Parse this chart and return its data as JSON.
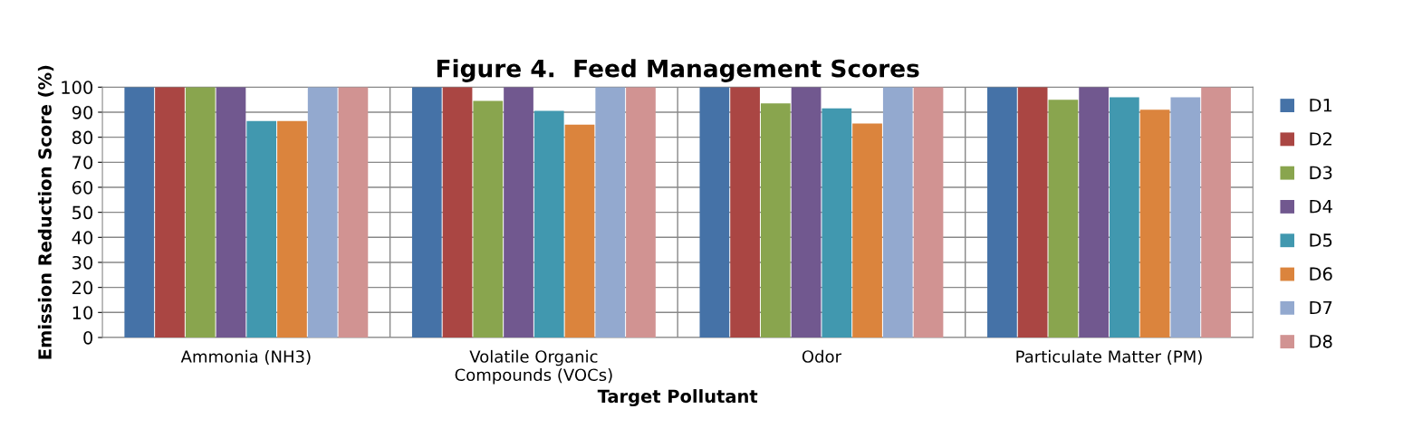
{
  "chart_data": {
    "type": "bar",
    "title": "Figure 4.  Feed Management Scores",
    "xlabel": "Target Pollutant",
    "ylabel": "Emission Reduction Score (%)",
    "categories": [
      "Ammonia (NH3)",
      "Volatile Organic\nCompounds (VOCs)",
      "Odor",
      "Particulate Matter (PM)"
    ],
    "series": [
      {
        "name": "D1",
        "color": "#4572a7",
        "values": [
          100,
          100,
          100,
          100
        ]
      },
      {
        "name": "D2",
        "color": "#aa4643",
        "values": [
          100,
          100,
          100,
          100
        ]
      },
      {
        "name": "D3",
        "color": "#89a54e",
        "values": [
          100,
          94.5,
          93.5,
          95
        ]
      },
      {
        "name": "D4",
        "color": "#71588f",
        "values": [
          100,
          100,
          100,
          100
        ]
      },
      {
        "name": "D5",
        "color": "#4198af",
        "values": [
          86.5,
          90.5,
          91.5,
          96
        ]
      },
      {
        "name": "D6",
        "color": "#db843d",
        "values": [
          86.5,
          85,
          85.5,
          91
        ]
      },
      {
        "name": "D7",
        "color": "#93a9cf",
        "values": [
          100,
          100,
          100,
          96
        ]
      },
      {
        "name": "D8",
        "color": "#d19392",
        "values": [
          100,
          100,
          100,
          100
        ]
      }
    ],
    "ylim": [
      0,
      100
    ],
    "yticks": [
      0,
      10,
      20,
      30,
      40,
      50,
      60,
      70,
      80,
      90,
      100
    ],
    "grid": true,
    "legend": "right"
  }
}
